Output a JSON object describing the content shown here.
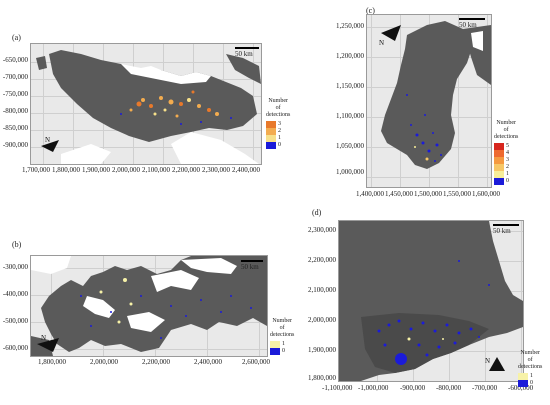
{
  "panels": [
    {
      "id": "a",
      "label": "(a)",
      "y_ticks": [
        "-650,000",
        "-700,000",
        "-750,000",
        "-800,000",
        "-850,000",
        "-900,000"
      ],
      "x_ticks": [
        "1,700,000",
        "1,800,000",
        "1,900,000",
        "2,000,000",
        "2,100,000",
        "2,200,000",
        "2,300,000",
        "2,400,000"
      ],
      "scale_text": "50 km",
      "legend_title_1": "Number of",
      "legend_title_2": "detections",
      "legend_ticks": [
        "3",
        "2",
        "1",
        "0"
      ],
      "legend_colors": [
        "#e8792b",
        "#f3ac4f",
        "#f7e08a",
        "#1b1bd9"
      ]
    },
    {
      "id": "b",
      "label": "(b)",
      "y_ticks": [
        "-300,000",
        "-400,000",
        "-500,000",
        "-600,000"
      ],
      "x_ticks": [
        "1,800,000",
        "2,000,000",
        "2,200,000",
        "2,400,000",
        "2,600,000"
      ],
      "scale_text": "50 km",
      "legend_title_1": "Number of",
      "legend_title_2": "detections",
      "legend_ticks": [
        "1",
        "0"
      ],
      "legend_colors": [
        "#f7f2a8",
        "#1b1bd9"
      ]
    },
    {
      "id": "c",
      "label": "(c)",
      "y_ticks": [
        "1,250,000",
        "1,200,000",
        "1,150,000",
        "1,100,000",
        "1,050,000",
        "1,000,000"
      ],
      "x_ticks": [
        "1,400,000",
        "1,450,000",
        "1,500,000",
        "1,550,000",
        "1,600,000"
      ],
      "scale_text": "50 km",
      "legend_title_1": "Number of",
      "legend_title_2": "detections",
      "legend_ticks": [
        "5",
        "4",
        "3",
        "2",
        "1",
        "0"
      ],
      "legend_colors": [
        "#d7261e",
        "#ee6a2f",
        "#f59a40",
        "#f7c766",
        "#f7ee99",
        "#1b1bd9"
      ]
    },
    {
      "id": "d",
      "label": "(d)",
      "y_ticks": [
        "2,300,000",
        "2,200,000",
        "2,100,000",
        "2,000,000",
        "1,900,000",
        "1,800,000"
      ],
      "x_ticks": [
        "-1,100,000",
        "-1,000,000",
        "-900,000",
        "-800,000",
        "-700,000",
        "-600,000"
      ],
      "scale_text": "50 km",
      "legend_title_1": "Number of",
      "legend_title_2": "detections",
      "legend_ticks": [
        "1",
        "0"
      ],
      "legend_colors": [
        "#f7f2a8",
        "#1b1bd9"
      ]
    }
  ]
}
